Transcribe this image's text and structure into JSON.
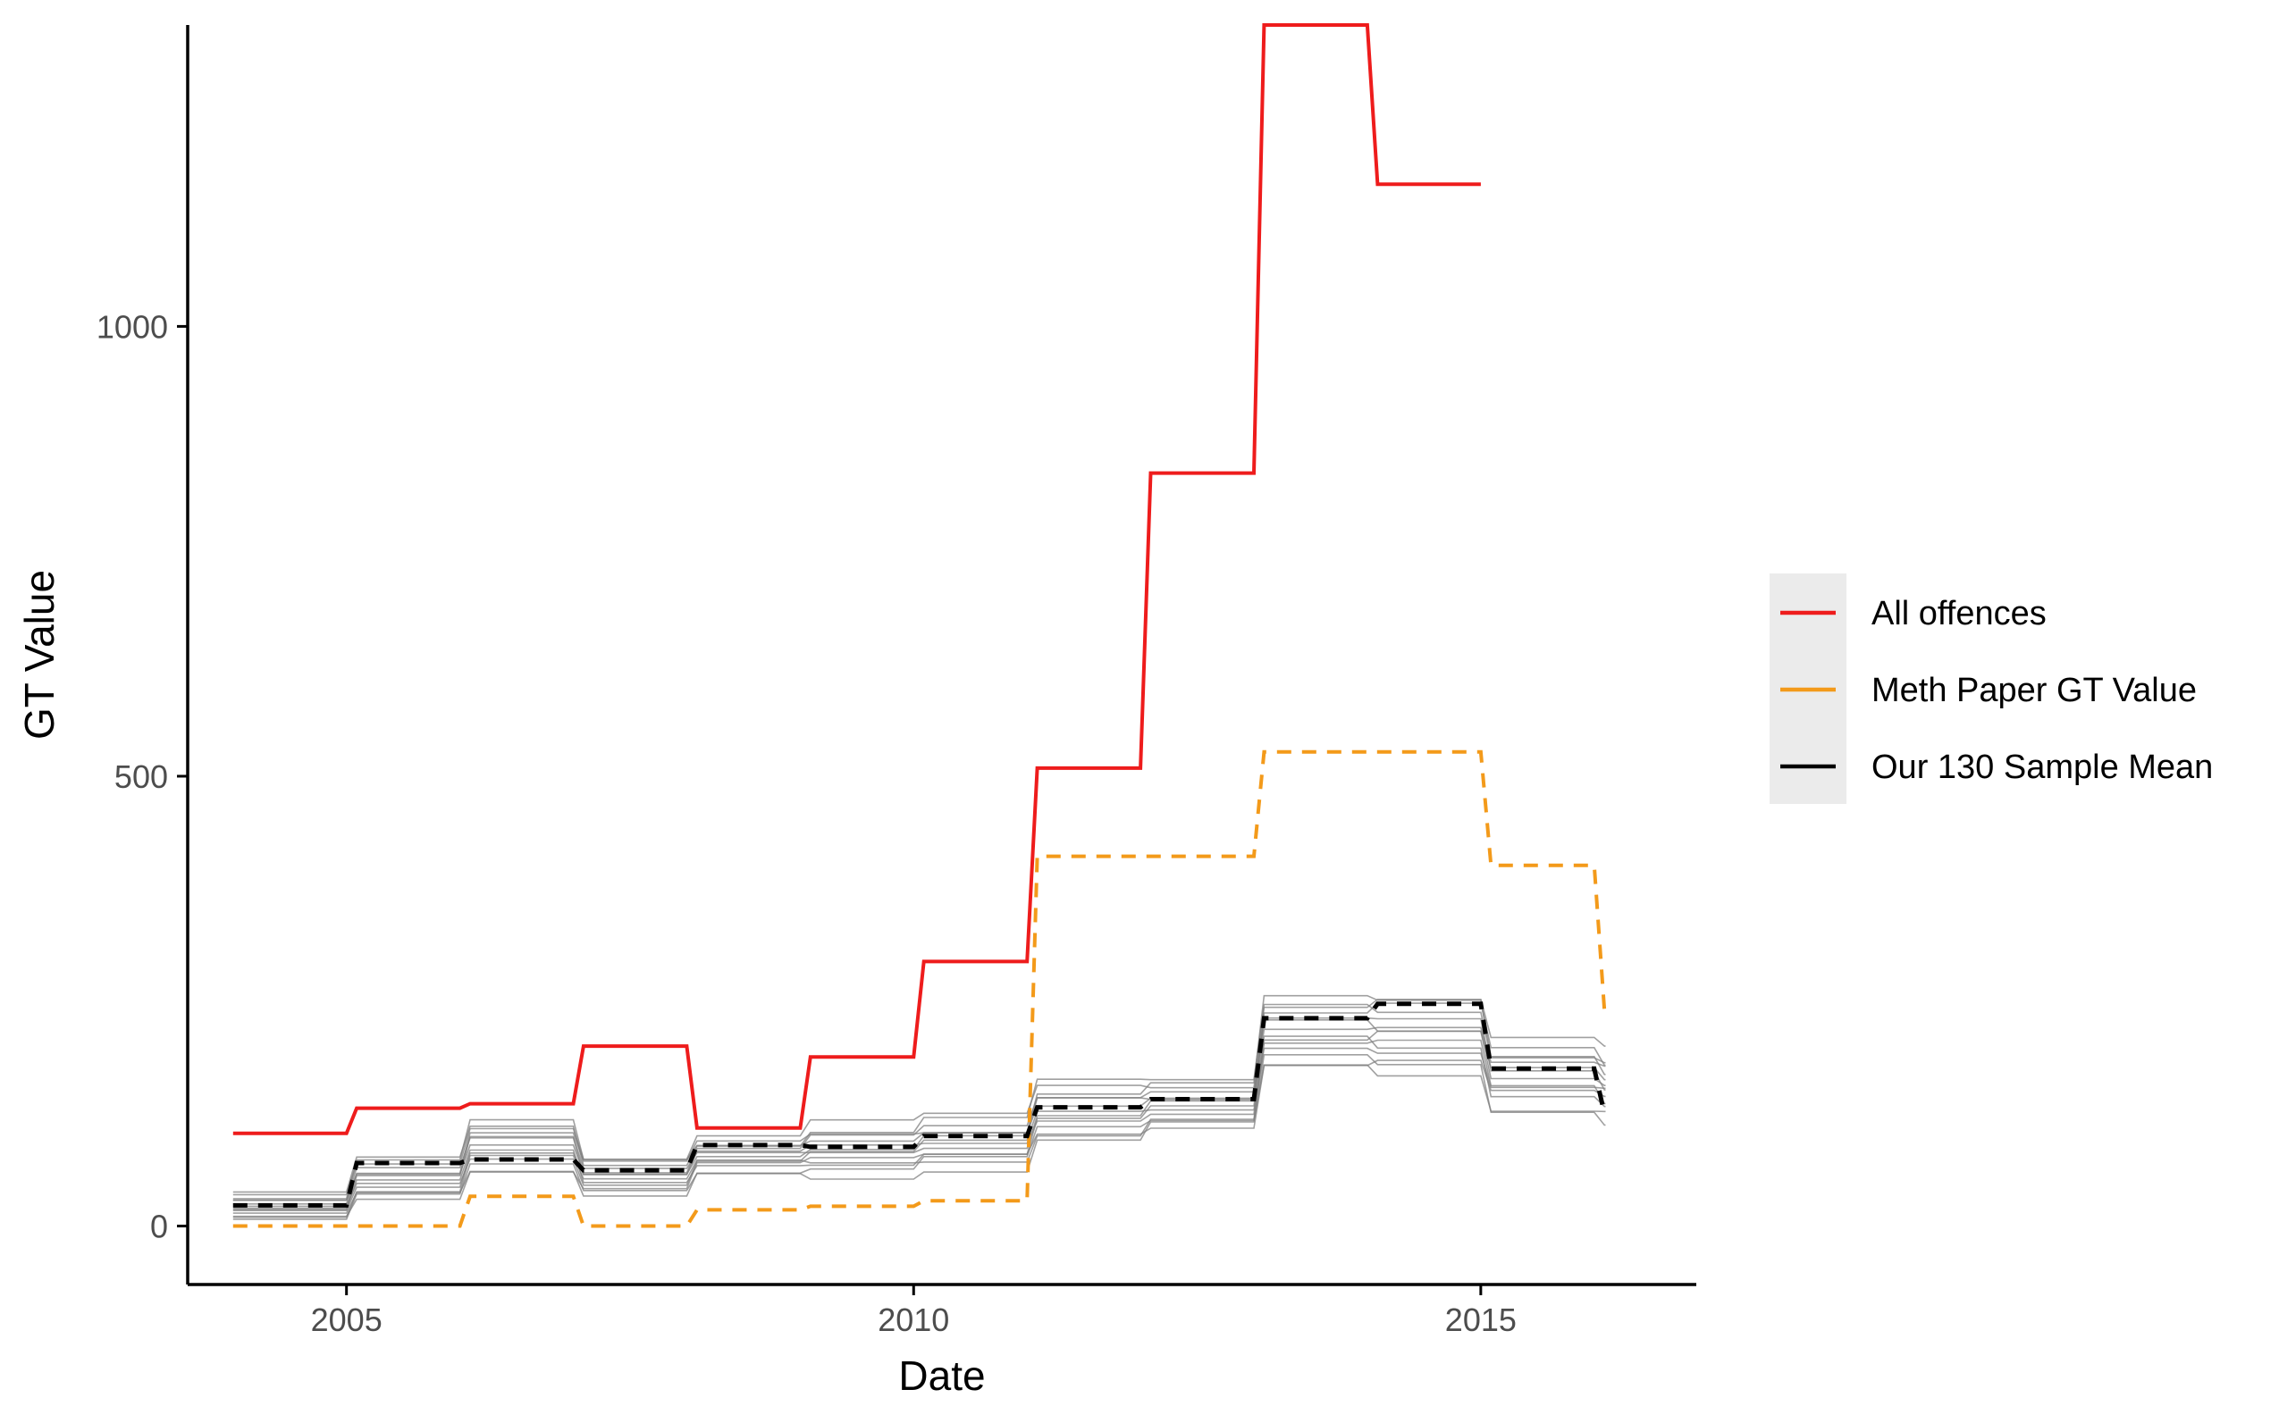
{
  "chart_data": {
    "type": "line",
    "title": "",
    "xlabel": "Date",
    "ylabel": "GT Value",
    "x_ticks": [
      2005,
      2010,
      2015
    ],
    "y_ticks": [
      0,
      500,
      1000
    ],
    "xlim": [
      2003.6,
      2016.9
    ],
    "ylim": [
      -65,
      1335
    ],
    "grid": false,
    "legend_position": "right",
    "series": [
      {
        "name": "All offences",
        "color": "#ee1c1c",
        "dash": "solid",
        "steps": [
          {
            "start": 2004,
            "end": 2005,
            "value": 103
          },
          {
            "start": 2005,
            "end": 2006,
            "value": 131
          },
          {
            "start": 2006,
            "end": 2007,
            "value": 136
          },
          {
            "start": 2007,
            "end": 2008,
            "value": 200
          },
          {
            "start": 2008,
            "end": 2009,
            "value": 109
          },
          {
            "start": 2009,
            "end": 2010,
            "value": 188
          },
          {
            "start": 2010,
            "end": 2011,
            "value": 294
          },
          {
            "start": 2011,
            "end": 2012,
            "value": 509
          },
          {
            "start": 2012,
            "end": 2013,
            "value": 837
          },
          {
            "start": 2013,
            "end": 2014,
            "value": 1335
          },
          {
            "start": 2014,
            "end": 2015,
            "value": 1158
          }
        ]
      },
      {
        "name": "Meth Paper GT Value",
        "color": "#f39a1a",
        "dash": "dashed",
        "steps": [
          {
            "start": 2004,
            "end": 2005,
            "value": 0
          },
          {
            "start": 2005,
            "end": 2006,
            "value": 0
          },
          {
            "start": 2006,
            "end": 2007,
            "value": 33
          },
          {
            "start": 2007,
            "end": 2008,
            "value": 0
          },
          {
            "start": 2008,
            "end": 2009,
            "value": 18
          },
          {
            "start": 2009,
            "end": 2010,
            "value": 22
          },
          {
            "start": 2010,
            "end": 2011,
            "value": 28
          },
          {
            "start": 2011,
            "end": 2012,
            "value": 411
          },
          {
            "start": 2012,
            "end": 2013,
            "value": 411
          },
          {
            "start": 2013,
            "end": 2014,
            "value": 527
          },
          {
            "start": 2014,
            "end": 2015,
            "value": 527
          },
          {
            "start": 2015,
            "end": 2016,
            "value": 401
          },
          {
            "start": 2016,
            "end": 2016.1,
            "value": 240
          }
        ]
      },
      {
        "name": "Our 130 Sample Mean",
        "color": "#000000",
        "dash": "dashed",
        "steps": [
          {
            "start": 2004,
            "end": 2005,
            "value": 23
          },
          {
            "start": 2005,
            "end": 2006,
            "value": 70
          },
          {
            "start": 2006,
            "end": 2007,
            "value": 74
          },
          {
            "start": 2007,
            "end": 2008,
            "value": 62
          },
          {
            "start": 2008,
            "end": 2009,
            "value": 90
          },
          {
            "start": 2009,
            "end": 2010,
            "value": 88
          },
          {
            "start": 2010,
            "end": 2011,
            "value": 100
          },
          {
            "start": 2011,
            "end": 2012,
            "value": 132
          },
          {
            "start": 2012,
            "end": 2013,
            "value": 141
          },
          {
            "start": 2013,
            "end": 2014,
            "value": 231
          },
          {
            "start": 2014,
            "end": 2015,
            "value": 247
          },
          {
            "start": 2015,
            "end": 2016,
            "value": 175
          },
          {
            "start": 2016,
            "end": 2016.1,
            "value": 125
          }
        ]
      }
    ],
    "sample_band": {
      "color": "#808080",
      "steps": [
        {
          "start": 2004,
          "end": 2005,
          "low": 3,
          "high": 40
        },
        {
          "start": 2005,
          "end": 2006,
          "low": 22,
          "high": 83
        },
        {
          "start": 2006,
          "end": 2007,
          "low": 50,
          "high": 127
        },
        {
          "start": 2007,
          "end": 2008,
          "low": 30,
          "high": 83
        },
        {
          "start": 2008,
          "end": 2009,
          "low": 55,
          "high": 103
        },
        {
          "start": 2009,
          "end": 2010,
          "low": 52,
          "high": 118
        },
        {
          "start": 2010,
          "end": 2011,
          "low": 58,
          "high": 128
        },
        {
          "start": 2011,
          "end": 2012,
          "low": 85,
          "high": 168
        },
        {
          "start": 2012,
          "end": 2013,
          "low": 100,
          "high": 170
        },
        {
          "start": 2013,
          "end": 2014,
          "low": 165,
          "high": 268
        },
        {
          "start": 2014,
          "end": 2015,
          "low": 160,
          "high": 270
        },
        {
          "start": 2015,
          "end": 2016,
          "low": 120,
          "high": 215
        },
        {
          "start": 2016,
          "end": 2016.1,
          "low": 112,
          "high": 200
        }
      ]
    }
  }
}
